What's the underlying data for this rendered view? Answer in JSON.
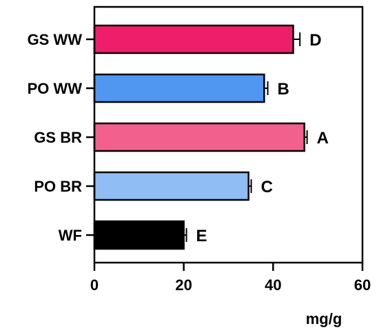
{
  "chart_data": {
    "type": "bar",
    "orientation": "horizontal",
    "title": "",
    "xlabel": "mg/g",
    "ylabel": "",
    "xlim": [
      0,
      60
    ],
    "xticks": [
      0,
      20,
      40,
      60
    ],
    "grid": false,
    "legend": "none",
    "categories": [
      "GS WW",
      "PO WW",
      "GS BR",
      "PO BR",
      "WF"
    ],
    "values": [
      44.5,
      38.0,
      47.0,
      34.5,
      20.0
    ],
    "errors": [
      1.5,
      0.8,
      0.6,
      0.6,
      0.6
    ],
    "significance": [
      "D",
      "B",
      "A",
      "C",
      "E"
    ],
    "colors": [
      "#ee1e6b",
      "#4f97f0",
      "#f2608e",
      "#90bdf4",
      "#000000"
    ]
  }
}
